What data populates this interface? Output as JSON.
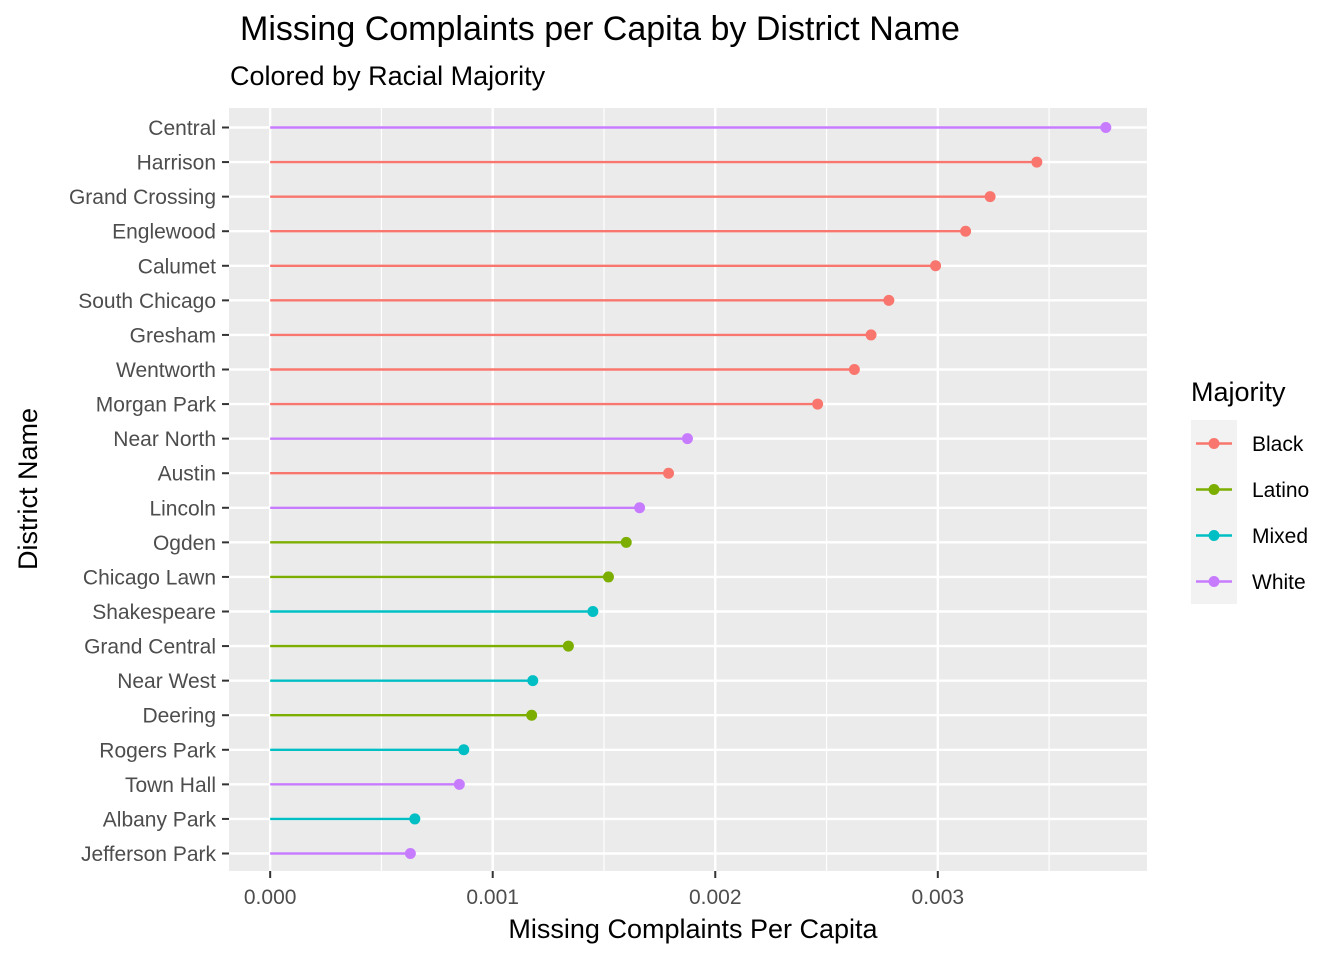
{
  "chart_data": {
    "type": "lollipop",
    "title": "Missing Complaints per Capita by District Name",
    "subtitle": "Colored by Racial Majority",
    "xlabel": "Missing Complaints Per Capita",
    "ylabel": "District Name",
    "xlim": [
      -0.000185,
      0.00394
    ],
    "x_ticks": [
      "0.000",
      "0.001",
      "0.002",
      "0.003"
    ],
    "x_tick_values": [
      0,
      0.001,
      0.002,
      0.003
    ],
    "grid": true,
    "legend": {
      "title": "Majority",
      "placement": "right",
      "items": [
        {
          "name": "Black",
          "color": "#F8766D"
        },
        {
          "name": "Latino",
          "color": "#7CAE00"
        },
        {
          "name": "Mixed",
          "color": "#00BFC4"
        },
        {
          "name": "White",
          "color": "#C77CFF"
        }
      ]
    },
    "data": [
      {
        "district": "Central",
        "value": 0.003755,
        "majority": "White"
      },
      {
        "district": "Harrison",
        "value": 0.003445,
        "majority": "Black"
      },
      {
        "district": "Grand Crossing",
        "value": 0.003235,
        "majority": "Black"
      },
      {
        "district": "Englewood",
        "value": 0.003125,
        "majority": "Black"
      },
      {
        "district": "Calumet",
        "value": 0.00299,
        "majority": "Black"
      },
      {
        "district": "South Chicago",
        "value": 0.00278,
        "majority": "Black"
      },
      {
        "district": "Gresham",
        "value": 0.0027,
        "majority": "Black"
      },
      {
        "district": "Wentworth",
        "value": 0.002625,
        "majority": "Black"
      },
      {
        "district": "Morgan Park",
        "value": 0.00246,
        "majority": "Black"
      },
      {
        "district": "Near North",
        "value": 0.001875,
        "majority": "White"
      },
      {
        "district": "Austin",
        "value": 0.00179,
        "majority": "Black"
      },
      {
        "district": "Lincoln",
        "value": 0.00166,
        "majority": "White"
      },
      {
        "district": "Ogden",
        "value": 0.0016,
        "majority": "Latino"
      },
      {
        "district": "Chicago Lawn",
        "value": 0.00152,
        "majority": "Latino"
      },
      {
        "district": "Shakespeare",
        "value": 0.00145,
        "majority": "Mixed"
      },
      {
        "district": "Grand Central",
        "value": 0.00134,
        "majority": "Latino"
      },
      {
        "district": "Near West",
        "value": 0.00118,
        "majority": "Mixed"
      },
      {
        "district": "Deering",
        "value": 0.001175,
        "majority": "Latino"
      },
      {
        "district": "Rogers Park",
        "value": 0.00087,
        "majority": "Mixed"
      },
      {
        "district": "Town Hall",
        "value": 0.00085,
        "majority": "White"
      },
      {
        "district": "Albany Park",
        "value": 0.00065,
        "majority": "Mixed"
      },
      {
        "district": "Jefferson Park",
        "value": 0.00063,
        "majority": "White"
      }
    ]
  }
}
